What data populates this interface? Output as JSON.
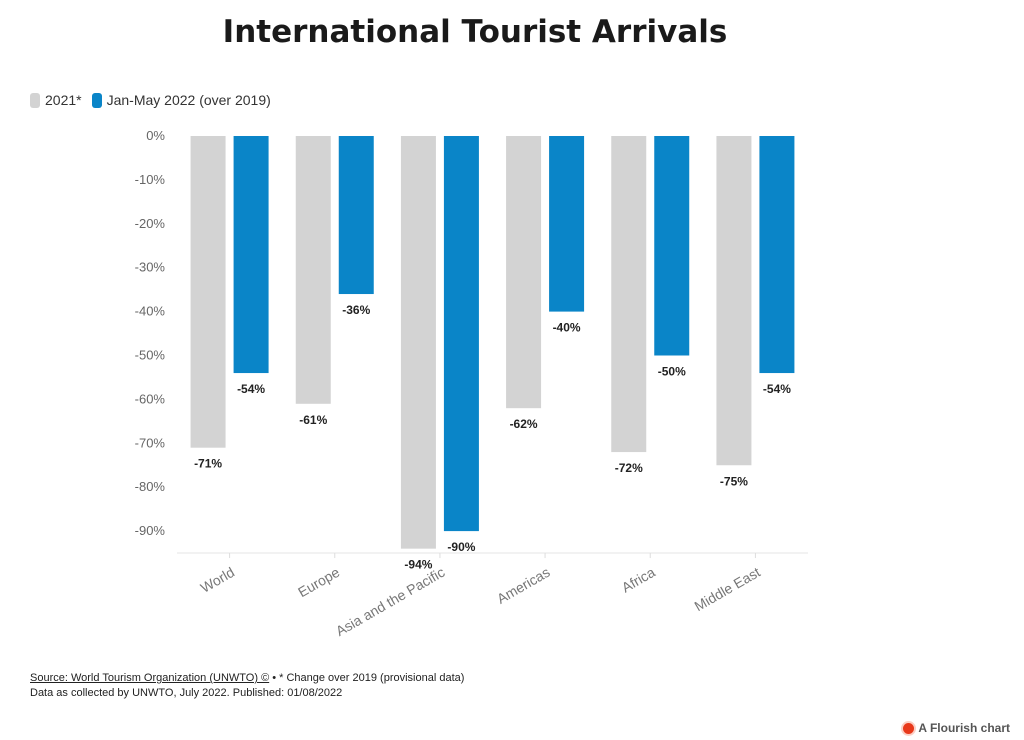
{
  "chart_data": {
    "type": "bar",
    "title": "International Tourist Arrivals",
    "categories": [
      "World",
      "Europe",
      "Asia and the Pacific",
      "Americas",
      "Africa",
      "Middle East"
    ],
    "series": [
      {
        "name": "2021*",
        "color": "#d3d3d3",
        "values": [
          -71,
          -61,
          -94,
          -62,
          -72,
          -75
        ]
      },
      {
        "name": "Jan-May 2022 (over 2019)",
        "color": "#0a85c8",
        "values": [
          -54,
          -36,
          -90,
          -40,
          -50,
          -54
        ]
      }
    ],
    "yticks": [
      "0%",
      "-10%",
      "-20%",
      "-30%",
      "-40%",
      "-50%",
      "-60%",
      "-70%",
      "-80%",
      "-90%"
    ],
    "ylim": [
      -95,
      0
    ],
    "value_suffix": "%",
    "legend_position": "top-left",
    "grid": false
  },
  "footer": {
    "source_link": "Source: World Tourism Organization (UNWTO) ©",
    "note": " • * Change over 2019 (provisional data)",
    "line2": "Data as collected by UNWTO, July 2022. Published: 01/08/2022"
  },
  "credit": "A Flourish chart"
}
